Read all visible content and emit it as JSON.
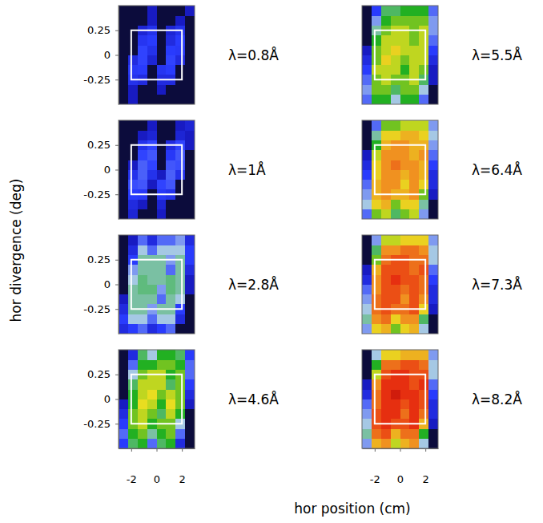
{
  "chart_data": {
    "type": "heatmap",
    "xlabel": "hor position (cm)",
    "ylabel": "hor divergence (deg)",
    "xlim": [
      -3,
      3
    ],
    "ylim": [
      -0.5,
      0.5
    ],
    "xticks": [
      -2,
      0,
      2
    ],
    "yticks": [
      -0.25,
      0,
      0.25
    ],
    "x_bins": [
      -3,
      -2.25,
      -1.5,
      -0.75,
      0,
      0.75,
      1.5,
      2.25,
      3
    ],
    "y_bins": [
      -0.5,
      -0.4,
      -0.3,
      -0.2,
      -0.1,
      0,
      0.1,
      0.2,
      0.3,
      0.4,
      0.5
    ],
    "zlim": [
      0,
      9
    ],
    "box": {
      "x": [
        -2,
        2
      ],
      "y": [
        -0.25,
        0.25
      ]
    },
    "panels": [
      {
        "title": "λ=0.8Å",
        "z": [
          [
            0,
            0.5,
            0,
            0,
            0,
            0,
            0,
            0
          ],
          [
            0,
            0.5,
            0,
            0,
            0.5,
            0,
            0,
            0
          ],
          [
            0,
            1.2,
            1,
            0,
            1,
            1,
            0,
            0
          ],
          [
            0,
            1.4,
            1.5,
            0,
            1.3,
            1.5,
            0,
            0
          ],
          [
            0,
            1,
            1.6,
            0.8,
            0,
            1.6,
            1,
            0
          ],
          [
            0,
            0,
            1.6,
            1.2,
            0,
            1.5,
            1.4,
            0
          ],
          [
            0,
            0,
            1.3,
            1.5,
            0,
            1,
            1.5,
            0
          ],
          [
            0,
            0,
            0.8,
            1.2,
            0,
            0.8,
            1.2,
            0
          ],
          [
            0,
            0,
            0,
            0.5,
            0,
            0,
            0.5,
            0
          ],
          [
            0,
            0,
            0,
            0.5,
            0,
            0,
            0,
            0.5
          ]
        ]
      },
      {
        "title": "λ=1Å",
        "z": [
          [
            0,
            0.8,
            0,
            0,
            0.5,
            0,
            0,
            0
          ],
          [
            0,
            1,
            0.5,
            0,
            0.8,
            0,
            0,
            0
          ],
          [
            0,
            1.5,
            1.4,
            0,
            1.4,
            1.2,
            0,
            0
          ],
          [
            0,
            1.7,
            1.8,
            0.5,
            1.6,
            1.8,
            0,
            0
          ],
          [
            0,
            1.2,
            1.9,
            1.2,
            0.5,
            1.9,
            1.2,
            0
          ],
          [
            0,
            0.5,
            1.9,
            1.6,
            0,
            1.8,
            1.7,
            0
          ],
          [
            0,
            0,
            1.6,
            1.8,
            0,
            1.4,
            1.8,
            0
          ],
          [
            0,
            0,
            1.2,
            1.6,
            0,
            1,
            1.6,
            0.5
          ],
          [
            0,
            0,
            0.5,
            0.8,
            0,
            0,
            0.8,
            0.5
          ],
          [
            0,
            0,
            0,
            0.5,
            0,
            0,
            0.5,
            0.8
          ]
        ]
      },
      {
        "title": "λ=2.8Å",
        "z": [
          [
            1,
            1.5,
            2,
            1,
            1.5,
            2,
            0,
            0
          ],
          [
            1.5,
            3,
            3,
            2,
            3,
            3,
            1,
            0
          ],
          [
            1,
            3.5,
            3.5,
            2.5,
            3.5,
            3.5,
            1.5,
            0
          ],
          [
            0.5,
            3.5,
            3.5,
            3.5,
            2,
            3.5,
            3,
            0
          ],
          [
            0,
            3.5,
            3.8,
            3.8,
            2.5,
            3.8,
            3.5,
            0.5
          ],
          [
            0,
            3,
            3.8,
            3.5,
            3.5,
            3.8,
            3.5,
            0.5
          ],
          [
            0,
            2.5,
            3.5,
            3.5,
            3.5,
            2,
            3.5,
            1
          ],
          [
            0,
            1.5,
            3.5,
            3.5,
            3.5,
            2.5,
            3.5,
            1.5
          ],
          [
            0,
            1,
            3,
            2,
            3,
            3,
            3,
            1.5
          ],
          [
            0,
            0.5,
            2,
            1,
            2,
            2,
            2.5,
            1
          ]
        ]
      },
      {
        "title": "λ=4.6Å",
        "z": [
          [
            1.5,
            4,
            4.5,
            2,
            4,
            4.5,
            1,
            0
          ],
          [
            2,
            4.5,
            5,
            3.5,
            4.5,
            5,
            2,
            0
          ],
          [
            1.5,
            5,
            5.5,
            4.5,
            5,
            5,
            3,
            0
          ],
          [
            1,
            5,
            5.5,
            5,
            4,
            5.5,
            4.5,
            0
          ],
          [
            0.5,
            4.5,
            5.8,
            5.5,
            4.5,
            5.8,
            5,
            0.5
          ],
          [
            0,
            4.5,
            5.5,
            5.8,
            5,
            5.5,
            5,
            1
          ],
          [
            0,
            4,
            5.5,
            5.5,
            5.5,
            4,
            5,
            1.5
          ],
          [
            0,
            3,
            5,
            5.5,
            5.5,
            4.5,
            5,
            2
          ],
          [
            0,
            2,
            4.5,
            4.5,
            5,
            5,
            4.5,
            2
          ],
          [
            0,
            1,
            4,
            3,
            4.5,
            4.5,
            4,
            1.5
          ]
        ]
      },
      {
        "title": "λ=5.5Å",
        "z": [
          [
            2,
            4.5,
            4.5,
            3,
            4.5,
            4.5,
            2,
            0
          ],
          [
            2.5,
            5,
            5,
            4,
            5,
            5,
            3,
            0
          ],
          [
            2,
            5,
            5.5,
            5,
            5,
            5.5,
            4,
            0.5
          ],
          [
            1.5,
            5.5,
            5.5,
            5.5,
            4.5,
            5.5,
            5,
            0.5
          ],
          [
            1,
            5,
            6,
            5.5,
            5,
            5.5,
            5.5,
            1
          ],
          [
            0.5,
            5,
            5.5,
            6,
            5.5,
            5.5,
            5.5,
            1.5
          ],
          [
            0,
            4.5,
            5.5,
            5.5,
            5.5,
            5,
            5.5,
            2
          ],
          [
            0,
            3.5,
            5,
            5.5,
            5.5,
            5,
            5.5,
            2.5
          ],
          [
            0,
            2.5,
            4.5,
            5,
            5,
            5,
            5,
            2.5
          ],
          [
            0,
            1.5,
            4,
            4,
            4.5,
            4.5,
            4.5,
            2
          ]
        ]
      },
      {
        "title": "λ=6.4Å",
        "z": [
          [
            2,
            5,
            5.5,
            4,
            5,
            5.5,
            2.5,
            0
          ],
          [
            3,
            6,
            6.5,
            5,
            6,
            6,
            3.5,
            0
          ],
          [
            2.5,
            6.5,
            7,
            6.5,
            6.5,
            7,
            5,
            0.5
          ],
          [
            2,
            6.5,
            7,
            7,
            6,
            7,
            6,
            1
          ],
          [
            1.5,
            6,
            7,
            7,
            6.5,
            7,
            6.5,
            1
          ],
          [
            1,
            6,
            7,
            7.5,
            7,
            7,
            6.5,
            1.5
          ],
          [
            0.5,
            5.5,
            7,
            7,
            7,
            6.5,
            7,
            2
          ],
          [
            0,
            4.5,
            6.5,
            7,
            7,
            6.5,
            6.5,
            2.5
          ],
          [
            0,
            3.5,
            6,
            6,
            6.5,
            6.5,
            6,
            3
          ],
          [
            0,
            2,
            5,
            5,
            5.5,
            5.5,
            5.5,
            2.5
          ]
        ]
      },
      {
        "title": "λ=7.3Å",
        "z": [
          [
            2.5,
            6,
            6.5,
            5,
            6,
            6.5,
            3,
            0
          ],
          [
            3.5,
            7,
            7.5,
            6,
            7,
            7,
            4,
            0
          ],
          [
            3,
            7.5,
            8,
            7.5,
            7.5,
            8,
            6,
            0.5
          ],
          [
            2.5,
            7.5,
            8,
            8,
            7,
            8,
            7,
            1
          ],
          [
            2,
            7,
            8,
            8,
            7.5,
            8,
            7.5,
            1
          ],
          [
            1,
            7,
            8,
            8.5,
            8,
            8,
            7.5,
            1.5
          ],
          [
            0.5,
            6.5,
            8,
            8,
            8,
            7.5,
            8,
            2
          ],
          [
            0,
            5,
            7.5,
            8,
            8,
            7.5,
            7.5,
            3
          ],
          [
            0,
            4,
            7,
            7,
            7.5,
            7.5,
            7,
            3
          ],
          [
            0,
            2.5,
            5.5,
            5.5,
            6,
            6,
            6,
            2.5
          ]
        ]
      },
      {
        "title": "λ=8.2Å",
        "z": [
          [
            2.5,
            6.5,
            7,
            5.5,
            6.5,
            7,
            3,
            0
          ],
          [
            3.5,
            7.5,
            8,
            6.5,
            7.5,
            7.5,
            4.5,
            0
          ],
          [
            3,
            8,
            8.5,
            8,
            8,
            8.5,
            6.5,
            0.5
          ],
          [
            2.5,
            8,
            8.5,
            8.5,
            7.5,
            8.5,
            7.5,
            1
          ],
          [
            2,
            7.5,
            8.5,
            8.5,
            8,
            8.5,
            8,
            1
          ],
          [
            1,
            7.5,
            8.5,
            9,
            8.5,
            8.5,
            8,
            1.5
          ],
          [
            0.5,
            7,
            8.5,
            8.5,
            8.5,
            8,
            8.5,
            2
          ],
          [
            0,
            5.5,
            8,
            8.5,
            8.5,
            8,
            8,
            3
          ],
          [
            0,
            4.5,
            7.5,
            7.5,
            8,
            8,
            7.5,
            3
          ],
          [
            0,
            3,
            6,
            6,
            6.5,
            6.5,
            6.5,
            2.5
          ]
        ]
      }
    ]
  }
}
